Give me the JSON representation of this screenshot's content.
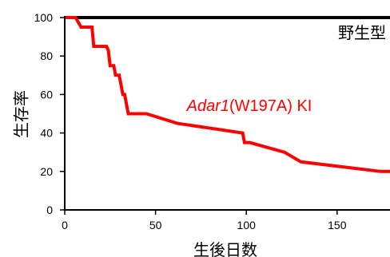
{
  "chart_data": {
    "type": "line",
    "xlabel": "生後日数",
    "ylabel": "生存率",
    "xlim": [
      0,
      180
    ],
    "ylim": [
      0,
      100
    ],
    "xticks": [
      0,
      50,
      100,
      150
    ],
    "yticks": [
      0,
      20,
      40,
      60,
      80,
      100
    ],
    "grid": false,
    "series": [
      {
        "name": "野生型",
        "color": "#000000",
        "step": true,
        "x": [
          0,
          180
        ],
        "y": [
          100,
          100
        ]
      },
      {
        "name_italic": "Adar1",
        "name_rest": "(W197A) KI",
        "color": "#ff0000",
        "step": false,
        "x": [
          0,
          6,
          9,
          15,
          16,
          23,
          24,
          25,
          27,
          28,
          30,
          31,
          32,
          33,
          34,
          35,
          44,
          45,
          62,
          98,
          99,
          101,
          102,
          121,
          130,
          174,
          180
        ],
        "y": [
          100,
          100,
          95,
          95,
          85,
          85,
          83,
          75,
          75,
          70,
          70,
          65,
          60,
          60,
          55,
          50,
          50,
          50,
          45,
          40,
          35,
          35,
          35,
          30,
          25,
          20,
          20
        ]
      }
    ]
  }
}
